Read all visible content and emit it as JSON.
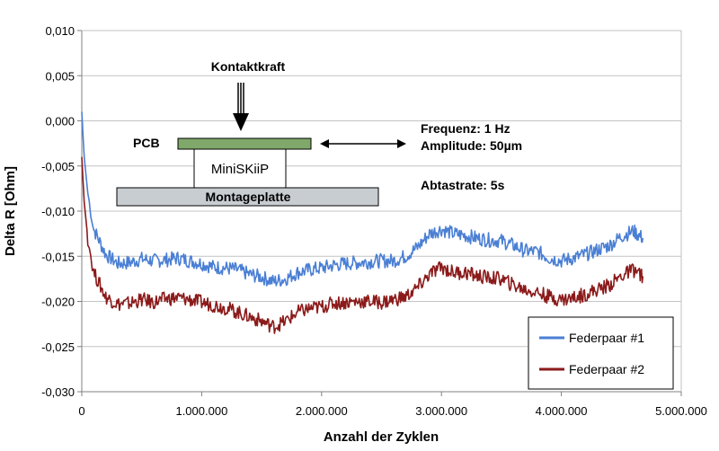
{
  "chart_data": {
    "type": "line",
    "xlabel": "Anzahl der Zyklen",
    "ylabel": "Delta R [Ohm]",
    "xlim": [
      0,
      5000000
    ],
    "ylim": [
      -0.03,
      0.01
    ],
    "x_ticks": [
      {
        "value": 0,
        "label": "0"
      },
      {
        "value": 1000000,
        "label": "1.000.000"
      },
      {
        "value": 2000000,
        "label": "2.000.000"
      },
      {
        "value": 3000000,
        "label": "3.000.000"
      },
      {
        "value": 4000000,
        "label": "4.000.000"
      },
      {
        "value": 5000000,
        "label": "5.000.000"
      }
    ],
    "y_ticks": [
      {
        "value": 0.01,
        "label": "0,010"
      },
      {
        "value": 0.005,
        "label": "0,005"
      },
      {
        "value": 0.0,
        "label": "0,000"
      },
      {
        "value": -0.005,
        "label": "-0,005"
      },
      {
        "value": -0.01,
        "label": "-0,010"
      },
      {
        "value": -0.015,
        "label": "-0,015"
      },
      {
        "value": -0.02,
        "label": "-0,020"
      },
      {
        "value": -0.025,
        "label": "-0,025"
      },
      {
        "value": -0.03,
        "label": "-0,030"
      }
    ],
    "grid": {
      "horizontal": true,
      "vertical": false
    },
    "legend_position": "bottom-right",
    "series": [
      {
        "name": "Federpaar #1",
        "color": "#4a7fd4",
        "x": [
          0,
          20000,
          50000,
          100000,
          200000,
          300000,
          400000,
          500000,
          600000,
          700000,
          800000,
          900000,
          1000000,
          1100000,
          1200000,
          1300000,
          1400000,
          1500000,
          1600000,
          1700000,
          1800000,
          1900000,
          2000000,
          2100000,
          2200000,
          2300000,
          2400000,
          2500000,
          2600000,
          2700000,
          2800000,
          2900000,
          3000000,
          3100000,
          3200000,
          3300000,
          3400000,
          3500000,
          3600000,
          3700000,
          3800000,
          3900000,
          4000000,
          4100000,
          4200000,
          4300000,
          4400000,
          4500000,
          4600000,
          4680000
        ],
        "y": [
          0.001,
          -0.004,
          -0.008,
          -0.012,
          -0.0148,
          -0.0158,
          -0.0157,
          -0.0153,
          -0.0155,
          -0.0154,
          -0.0152,
          -0.0155,
          -0.0158,
          -0.0162,
          -0.0163,
          -0.0165,
          -0.017,
          -0.0173,
          -0.0178,
          -0.0175,
          -0.0168,
          -0.0165,
          -0.0163,
          -0.016,
          -0.0158,
          -0.0157,
          -0.0156,
          -0.0155,
          -0.0155,
          -0.015,
          -0.014,
          -0.0125,
          -0.012,
          -0.0125,
          -0.0127,
          -0.013,
          -0.0132,
          -0.0133,
          -0.0138,
          -0.0144,
          -0.0145,
          -0.0152,
          -0.0155,
          -0.0152,
          -0.0148,
          -0.0143,
          -0.0138,
          -0.0128,
          -0.0122,
          -0.013
        ]
      },
      {
        "name": "Federpaar #2",
        "color": "#8b1a1a",
        "x": [
          0,
          20000,
          50000,
          100000,
          200000,
          300000,
          400000,
          500000,
          600000,
          700000,
          800000,
          900000,
          1000000,
          1100000,
          1200000,
          1300000,
          1400000,
          1500000,
          1600000,
          1700000,
          1800000,
          1900000,
          2000000,
          2100000,
          2200000,
          2300000,
          2400000,
          2500000,
          2600000,
          2700000,
          2800000,
          2900000,
          3000000,
          3100000,
          3200000,
          3300000,
          3400000,
          3500000,
          3600000,
          3700000,
          3800000,
          3900000,
          4000000,
          4100000,
          4200000,
          4300000,
          4400000,
          4500000,
          4600000,
          4680000
        ],
        "y": [
          -0.004,
          -0.009,
          -0.013,
          -0.0168,
          -0.0195,
          -0.0203,
          -0.0202,
          -0.0198,
          -0.0201,
          -0.0197,
          -0.0196,
          -0.0198,
          -0.0201,
          -0.0204,
          -0.0207,
          -0.0212,
          -0.0217,
          -0.0222,
          -0.0228,
          -0.0222,
          -0.0212,
          -0.0208,
          -0.0206,
          -0.0202,
          -0.0201,
          -0.02,
          -0.02,
          -0.0201,
          -0.0198,
          -0.0195,
          -0.0185,
          -0.017,
          -0.0162,
          -0.0168,
          -0.0168,
          -0.0172,
          -0.0174,
          -0.0175,
          -0.0182,
          -0.0187,
          -0.019,
          -0.0195,
          -0.0198,
          -0.0196,
          -0.0192,
          -0.0187,
          -0.0182,
          -0.0172,
          -0.0165,
          -0.0172
        ]
      }
    ],
    "inset": {
      "force_label": "Kontaktkraft",
      "pcb_label": "PCB",
      "module_label": "MiniSKiiP",
      "base_label": "Montageplatte",
      "freq_label": "Frequenz:  1 Hz",
      "amp_label": "Amplitude:   50µm",
      "rate_label": "Abtastrate: 5s",
      "colors": {
        "pcb": "#7fa86a",
        "base": "#c8cdd2"
      }
    }
  }
}
